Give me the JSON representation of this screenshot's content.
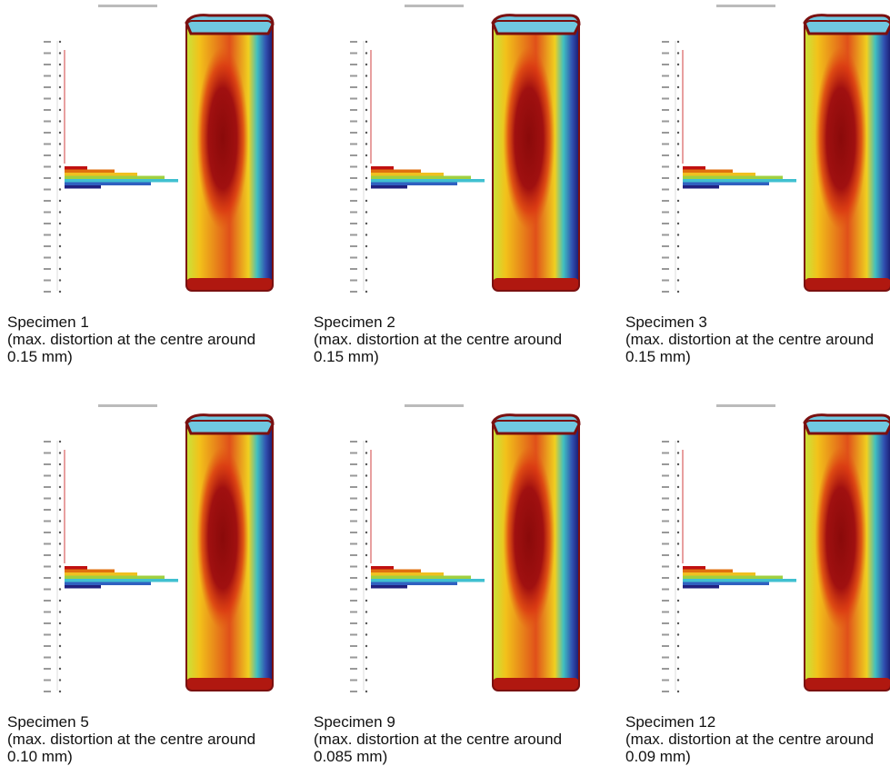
{
  "panels": [
    {
      "title": "Specimen 1",
      "lines": [
        "(max. distortion at the centre around",
        "0.15 mm)"
      ]
    },
    {
      "title": "Specimen 2",
      "lines": [
        "(max. distortion at the centre around",
        "0.15 mm)"
      ]
    },
    {
      "title": "Specimen 3",
      "lines": [
        "(max. distortion at the centre around",
        "0.15 mm)"
      ]
    },
    {
      "title": "Specimen 5",
      "lines": [
        "(max. distortion at the centre around",
        "0.10 mm)"
      ]
    },
    {
      "title": "Specimen 9",
      "lines": [
        "(max. distortion at the centre around",
        "0.085 mm)"
      ]
    },
    {
      "title": "Specimen 12",
      "lines": [
        "(max. distortion at the centre around",
        "0.09 mm)"
      ]
    }
  ]
}
